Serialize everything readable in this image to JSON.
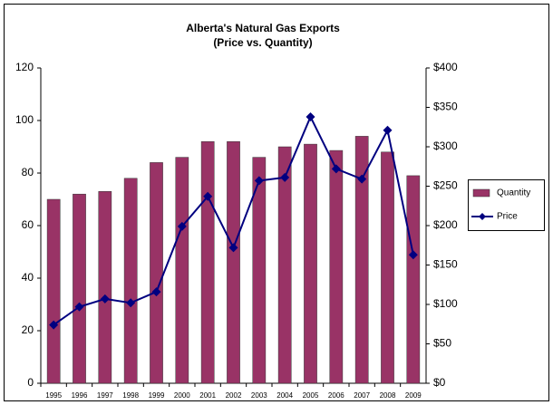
{
  "chart_data": {
    "type": "bar",
    "title": "Alberta's Natural Gas Exports",
    "subtitle": "(Price vs. Quantity)",
    "categories": [
      "1995",
      "1996",
      "1997",
      "1998",
      "1999",
      "2000",
      "2001",
      "2002",
      "2003",
      "2004",
      "2005",
      "2006",
      "2007",
      "2008",
      "2009"
    ],
    "series": [
      {
        "name": "Quantity",
        "type": "bar",
        "color": "#993366",
        "values": [
          70,
          72,
          73,
          78,
          84,
          86,
          92,
          92,
          86,
          90,
          91,
          88.6,
          94,
          88,
          79
        ]
      },
      {
        "name": "Price",
        "type": "line",
        "axis": "y2",
        "color": "#000080",
        "values": [
          74,
          97,
          107,
          102,
          116,
          199,
          237,
          172,
          257,
          261,
          338,
          272,
          259,
          321,
          163
        ]
      }
    ],
    "ylim": [
      0,
      120
    ],
    "yticks": [
      0,
      20,
      40,
      60,
      80,
      100,
      120
    ],
    "y2lim": [
      0,
      400
    ],
    "y2ticks": [
      {
        "value": 0,
        "label": "$0"
      },
      {
        "value": 50,
        "label": "$50"
      },
      {
        "value": 100,
        "label": "$100"
      },
      {
        "value": 150,
        "label": "$150"
      },
      {
        "value": 200,
        "label": "$200"
      },
      {
        "value": 250,
        "label": "$250"
      },
      {
        "value": 300,
        "label": "$300"
      },
      {
        "value": 350,
        "label": "$350"
      },
      {
        "value": 400,
        "label": "$400"
      }
    ],
    "grid": false,
    "legend": "right"
  }
}
